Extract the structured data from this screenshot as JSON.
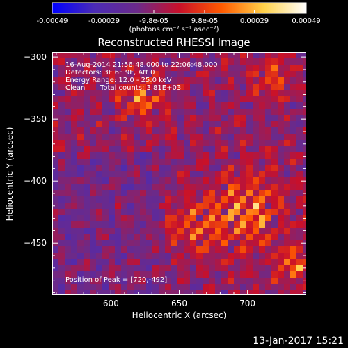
{
  "colorbar": {
    "tick_labels": [
      "-0.00049",
      "-0.00029",
      "-9.8e-05",
      "9.8e-05",
      "0.00029",
      "0.00049"
    ],
    "tick_values": [
      -0.00049,
      -0.00029,
      -9.8e-05,
      9.8e-05,
      0.00029,
      0.00049
    ],
    "units": "(photons cm⁻² s⁻¹ asec⁻²)",
    "colors": [
      "#0000ff",
      "#4b2bb5",
      "#6b2a8a",
      "#c8102a",
      "#ff5a00",
      "#ffd24a",
      "#ffffff"
    ]
  },
  "title": "Reconstructed RHESSI Image",
  "annotations": {
    "time_range": "16-Aug-2014 21:56:48.000 to 22:06:48.000",
    "detectors": "Detectors: 3F 6F 9F, Att 0",
    "energy": "Energy Range: 12.0 - 25.0 keV",
    "clean": "Clean",
    "total_counts": "Total counts: 3.81E+03",
    "peak": "Position of Peak = [720,-492]"
  },
  "chart_data": {
    "type": "heatmap",
    "title": "Reconstructed RHESSI Image",
    "xlabel": "Heliocentric X (arcsec)",
    "ylabel": "Heliocentric Y (arcsec)",
    "xlim": [
      557,
      743
    ],
    "ylim": [
      -492,
      -296
    ],
    "xticks": [
      600,
      650,
      700
    ],
    "yticks": [
      -300,
      -350,
      -400,
      -450
    ],
    "xtick_labels": [
      "600",
      "650",
      "700"
    ],
    "ytick_labels": [
      "−300",
      "−350",
      "−400",
      "−450"
    ],
    "zlim": [
      -0.00049,
      0.00049
    ],
    "peak": [
      720,
      -492
    ]
  },
  "footer": {
    "date": "13-Jan-2017 15:21"
  }
}
